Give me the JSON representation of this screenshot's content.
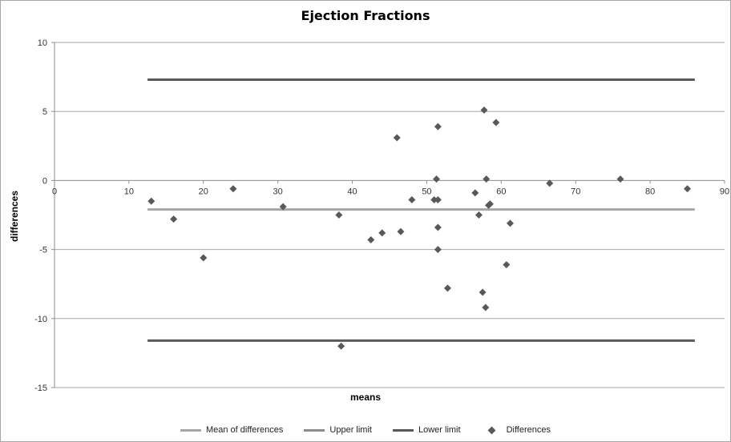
{
  "chart_data": {
    "type": "scatter",
    "title": "Ejection Fractions",
    "xlabel": "means",
    "ylabel": "differences",
    "xlim": [
      0,
      90
    ],
    "ylim": [
      -15,
      10
    ],
    "x_ticks": [
      "0",
      "10",
      "20",
      "30",
      "40",
      "50",
      "60",
      "70",
      "80",
      "90"
    ],
    "y_ticks": [
      "10",
      "5",
      "0",
      "-5",
      "-10",
      "-15"
    ],
    "grid": "horizontal",
    "legend_position": "bottom",
    "series": [
      {
        "name": "Mean of differences",
        "kind": "line",
        "color": "#a6a6a6",
        "x": [
          12.5,
          86
        ],
        "y": [
          -2.1,
          -2.1
        ]
      },
      {
        "name": "Upper limit",
        "kind": "line",
        "color": "#595959",
        "x": [
          12.5,
          86
        ],
        "y": [
          7.3,
          7.3
        ]
      },
      {
        "name": "Lower limit",
        "kind": "line",
        "color": "#595959",
        "x": [
          12.5,
          86
        ],
        "y": [
          -11.6,
          -11.6
        ]
      },
      {
        "name": "Differences",
        "kind": "points",
        "color": "#595959",
        "x": [
          13.0,
          16.0,
          20.0,
          24.0,
          30.7,
          38.2,
          38.5,
          42.5,
          44.0,
          46.0,
          46.5,
          48.0,
          51.0,
          51.3,
          51.5,
          51.5,
          51.5,
          51.5,
          52.8,
          56.5,
          57.0,
          57.5,
          57.7,
          57.9,
          58.0,
          58.3,
          58.5,
          59.3,
          60.7,
          61.2,
          66.5,
          76.0,
          85.0
        ],
        "y": [
          -1.5,
          -2.8,
          -5.6,
          -0.6,
          -1.9,
          -2.5,
          -12.0,
          -4.3,
          -3.8,
          3.1,
          -3.7,
          -1.4,
          -1.4,
          0.1,
          3.9,
          -3.4,
          -5.0,
          -1.4,
          -7.8,
          -0.9,
          -2.5,
          -8.1,
          5.1,
          -9.2,
          0.1,
          -1.8,
          -1.7,
          4.2,
          -6.1,
          -3.1,
          -0.2,
          0.1,
          -0.6
        ]
      }
    ]
  }
}
